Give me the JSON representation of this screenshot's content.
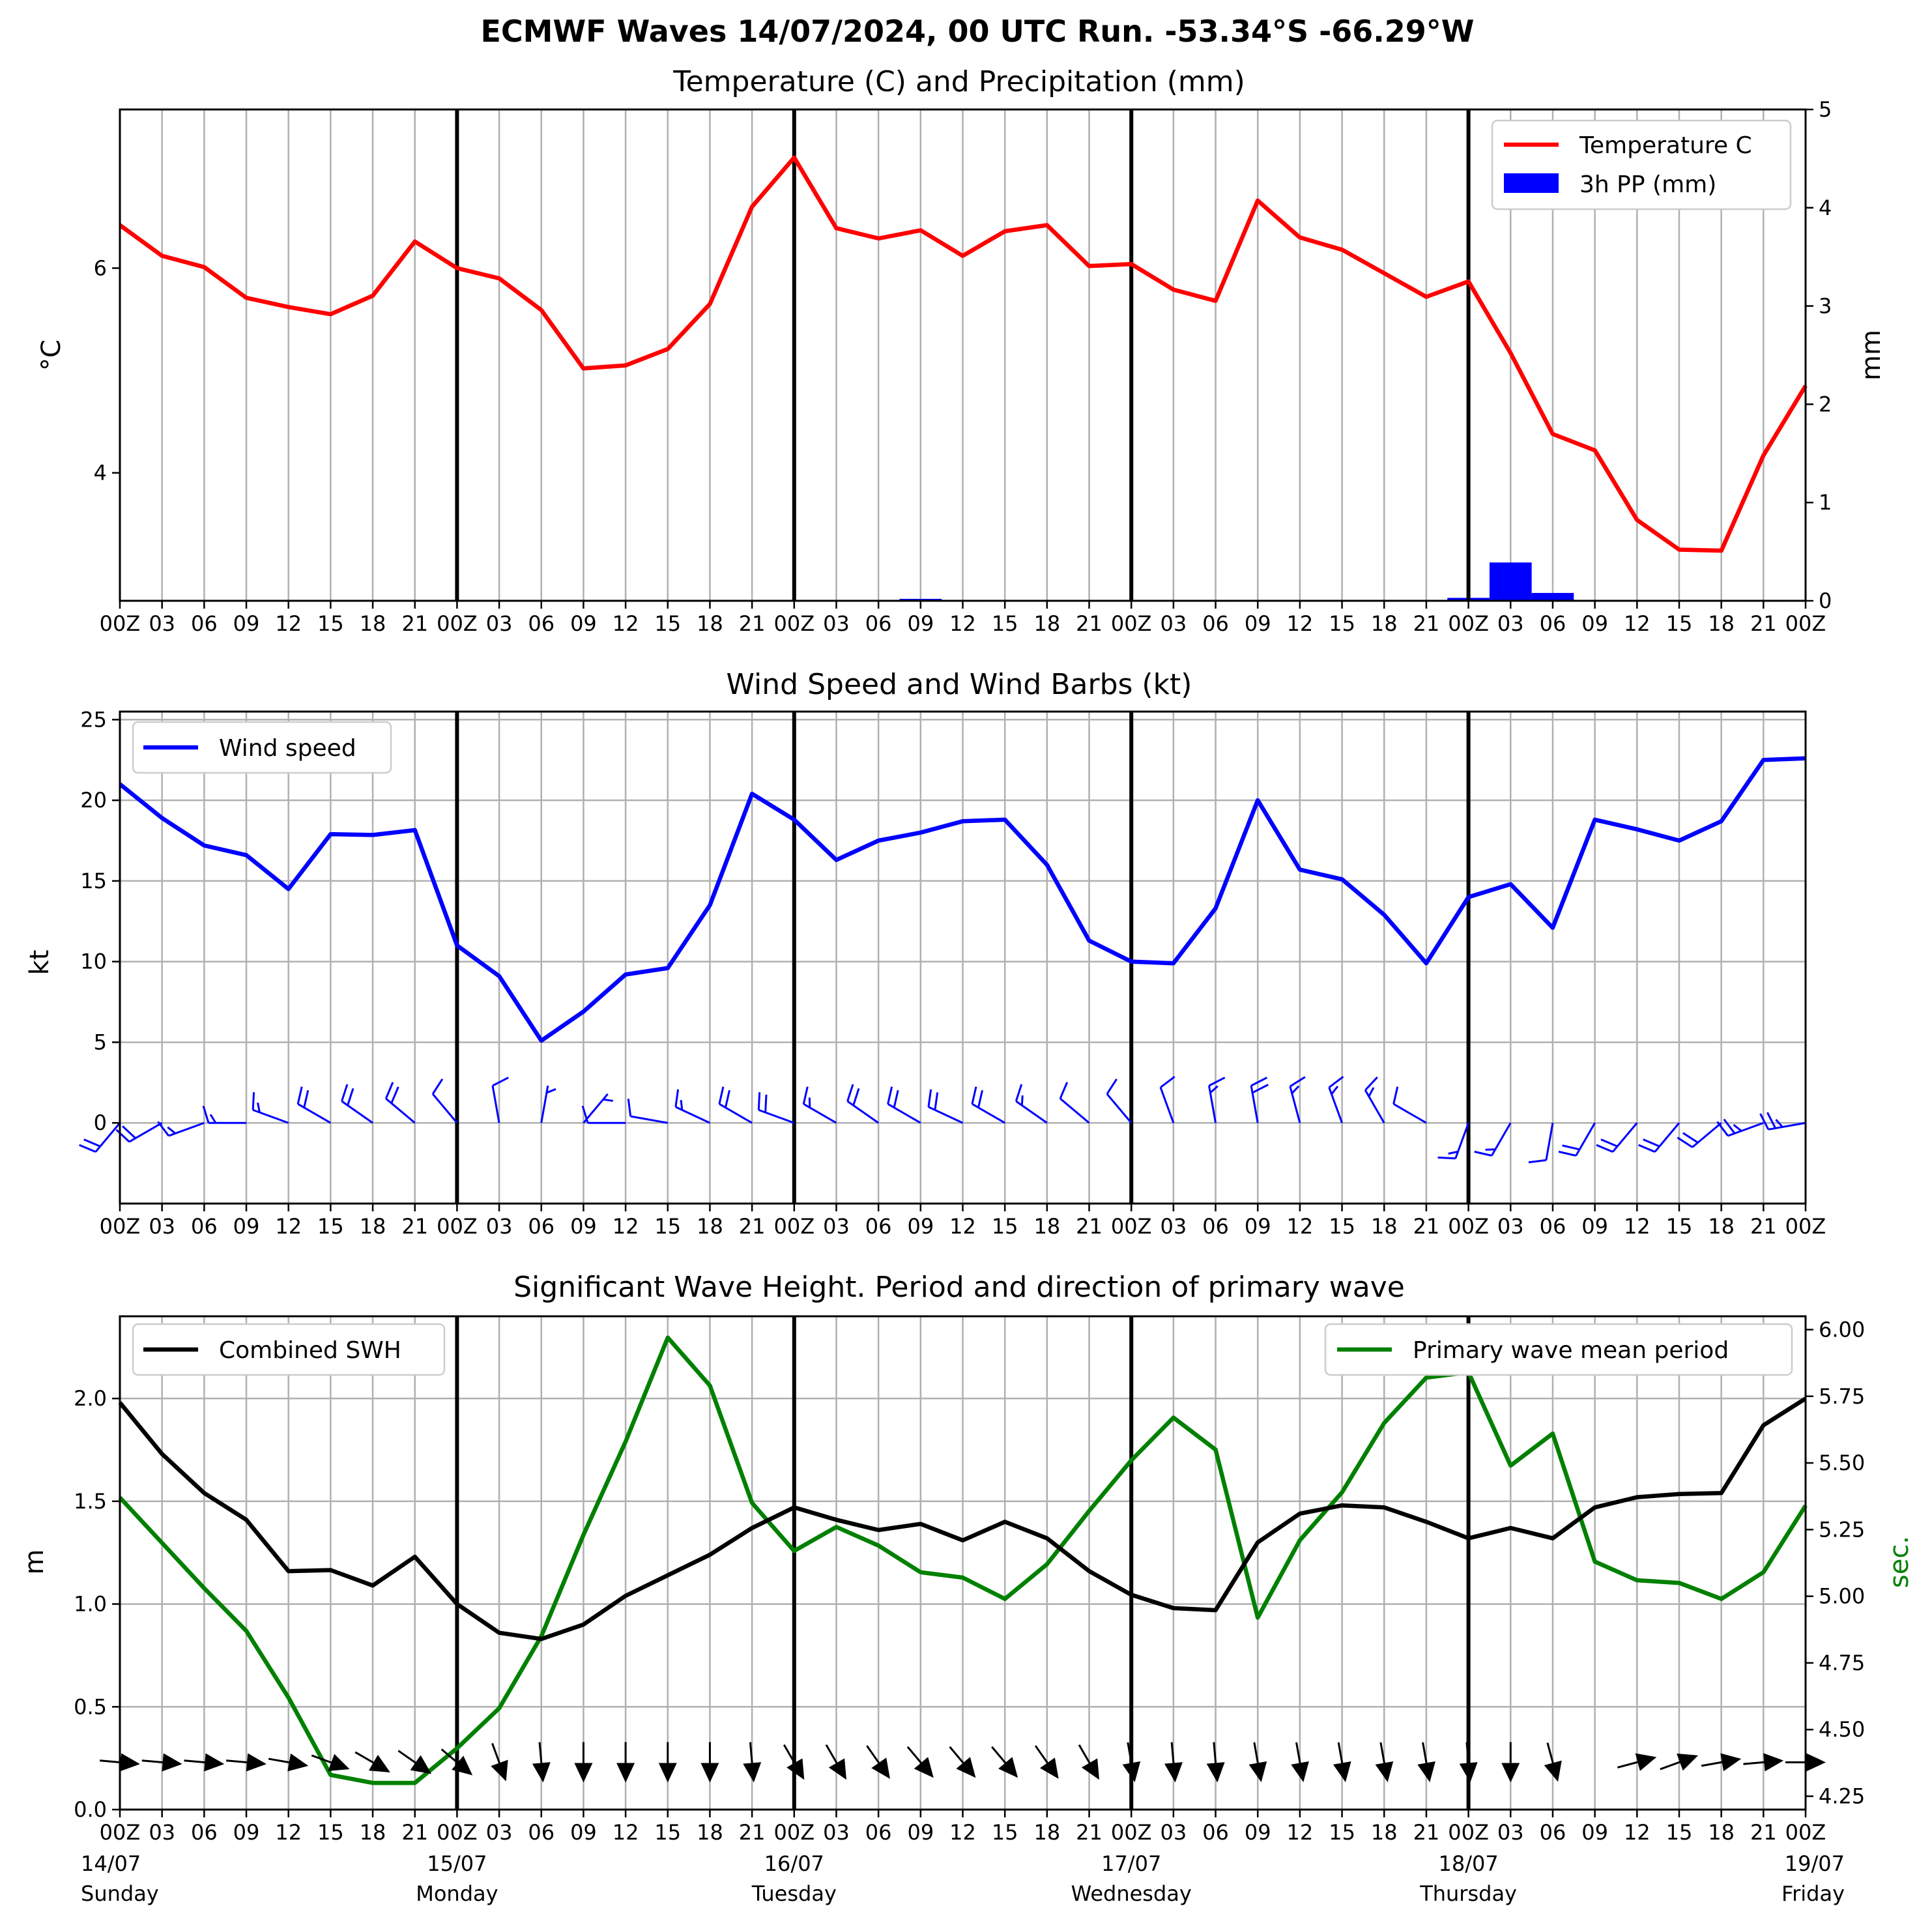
{
  "title": "ECMWF Waves 14/07/2024, 00 UTC Run. -53.34°S -66.29°W",
  "x_tick_labels_compact": [
    "00Z",
    "03",
    "06",
    "09",
    "12",
    "15",
    "18",
    "21",
    "00Z",
    "03",
    "06",
    "09",
    "12",
    "15",
    "18",
    "21",
    "00Z",
    "03",
    "06",
    "09",
    "12",
    "15",
    "18",
    "21",
    "00Z",
    "03",
    "06",
    "09",
    "12",
    "15",
    "18",
    "21",
    "00Z",
    "03",
    "06",
    "09",
    "12",
    "15",
    "18",
    "21",
    "00Z"
  ],
  "x_tick_labels_spaced": [
    "00Z",
    "03",
    "06",
    "09",
    "12",
    "15",
    "18",
    "21",
    "00Z",
    "03",
    "06",
    "09",
    "12",
    "15",
    "18",
    "21",
    "00Z",
    "03",
    "06",
    "09",
    "12",
    "15",
    "18",
    "21",
    "00Z",
    "03",
    "06",
    "09",
    "12",
    "15",
    "18",
    "21",
    "00Z",
    "03",
    "06",
    "09",
    "12",
    "15",
    "18",
    "21",
    "00Z"
  ],
  "day_labels": [
    {
      "date": "14/07",
      "day": "Sunday"
    },
    {
      "date": "15/07",
      "day": "Monday"
    },
    {
      "date": "16/07",
      "day": "Tuesday"
    },
    {
      "date": "17/07",
      "day": "Wednesday"
    },
    {
      "date": "18/07",
      "day": "Thursday"
    },
    {
      "date": "19/07",
      "day": "Friday"
    }
  ],
  "chart_data": [
    {
      "type": "line",
      "title": "Temperature (C) and Precipitation (mm)",
      "x_hours_from_run": [
        0,
        3,
        6,
        9,
        12,
        15,
        18,
        21,
        24,
        27,
        30,
        33,
        36,
        39,
        42,
        45,
        48,
        51,
        54,
        57,
        60,
        63,
        66,
        69,
        72,
        75,
        78,
        81,
        84,
        87,
        90,
        93,
        96,
        99,
        102,
        105,
        108,
        111,
        114,
        117,
        120
      ],
      "ylabel": "°C",
      "ylim": [
        2.75,
        7.55
      ],
      "yticks": [
        4,
        6
      ],
      "y2label": "mm",
      "y2lim": [
        0,
        5
      ],
      "y2ticks": [
        0,
        1,
        2,
        3,
        4,
        5
      ],
      "legend_position": "upper right",
      "series": [
        {
          "name": "Temperature C",
          "type": "line",
          "color": "#ff0000",
          "values": [
            6.42,
            6.12,
            6.01,
            5.71,
            5.62,
            5.55,
            5.73,
            6.26,
            6.0,
            5.9,
            5.59,
            5.02,
            5.05,
            5.21,
            5.65,
            6.6,
            7.08,
            6.39,
            6.29,
            6.37,
            6.12,
            6.36,
            6.42,
            6.02,
            6.04,
            5.79,
            5.68,
            6.66,
            6.3,
            6.18,
            5.95,
            5.72,
            5.87,
            5.17,
            4.38,
            4.22,
            3.54,
            3.25,
            3.24,
            4.17,
            4.85
          ]
        },
        {
          "name": "3h PP (mm)",
          "type": "bar",
          "color": "#0000ff",
          "axis": "right",
          "values": [
            0,
            0,
            0,
            0,
            0,
            0,
            0,
            0,
            0,
            0,
            0,
            0,
            0,
            0,
            0.01,
            0,
            0,
            0,
            0,
            0.02,
            0.01,
            0,
            0,
            0,
            0,
            0,
            0.01,
            0,
            0,
            0,
            0,
            0.01,
            0.03,
            0.39,
            0.08,
            0,
            0,
            0,
            0,
            0.01,
            0
          ]
        }
      ]
    },
    {
      "type": "line",
      "title": "Wind Speed and Wind Barbs (kt)",
      "x_hours_from_run": [
        0,
        3,
        6,
        9,
        12,
        15,
        18,
        21,
        24,
        27,
        30,
        33,
        36,
        39,
        42,
        45,
        48,
        51,
        54,
        57,
        60,
        63,
        66,
        69,
        72,
        75,
        78,
        81,
        84,
        87,
        90,
        93,
        96,
        99,
        102,
        105,
        108,
        111,
        114,
        117,
        120
      ],
      "ylabel": "kt",
      "ylim": [
        -5,
        25.5
      ],
      "yticks": [
        0,
        5,
        10,
        15,
        20,
        25
      ],
      "legend_position": "upper left",
      "series": [
        {
          "name": "Wind speed",
          "color": "#0000ff",
          "values": [
            21.0,
            18.9,
            17.2,
            16.6,
            14.5,
            17.9,
            17.85,
            18.15,
            11.0,
            9.1,
            5.1,
            6.9,
            9.2,
            9.6,
            13.5,
            20.4,
            18.8,
            16.3,
            17.5,
            18.0,
            18.7,
            18.8,
            16.0,
            11.3,
            10.0,
            9.9,
            13.3,
            20.0,
            15.7,
            15.1,
            12.9,
            9.9,
            14.0,
            14.8,
            12.1,
            18.8,
            18.2,
            17.5,
            18.7,
            22.5,
            22.6
          ]
        }
      ],
      "barbs": {
        "color": "#0000ff",
        "direction_deg_from": [
          220,
          240,
          250,
          270,
          290,
          300,
          305,
          310,
          320,
          350,
          10,
          40,
          270,
          280,
          295,
          300,
          290,
          300,
          305,
          300,
          295,
          300,
          305,
          310,
          320,
          340,
          350,
          350,
          345,
          340,
          330,
          300,
          200,
          210,
          190,
          210,
          220,
          220,
          230,
          250,
          260
        ]
      }
    },
    {
      "type": "line",
      "title": "Significant Wave Height. Period and direction of primary wave",
      "x_hours_from_run": [
        0,
        3,
        6,
        9,
        12,
        15,
        18,
        21,
        24,
        27,
        30,
        33,
        36,
        39,
        42,
        45,
        48,
        51,
        54,
        57,
        60,
        63,
        66,
        69,
        72,
        75,
        78,
        81,
        84,
        87,
        90,
        93,
        96,
        99,
        102,
        105,
        108,
        111,
        114,
        117,
        120
      ],
      "ylabel": "m",
      "ylim": [
        0,
        2.4
      ],
      "yticks": [
        0.0,
        0.5,
        1.0,
        1.5,
        2.0
      ],
      "y2label": "sec.",
      "y2lim": [
        4.2,
        6.05
      ],
      "y2ticks": [
        4.25,
        4.5,
        4.75,
        5.0,
        5.25,
        5.5,
        5.75,
        6.0
      ],
      "series": [
        {
          "name": "Combined SWH",
          "color": "#000000",
          "legend_position": "upper left",
          "values": [
            1.98,
            1.73,
            1.54,
            1.41,
            1.16,
            1.165,
            1.09,
            1.23,
            1.0,
            0.86,
            0.83,
            0.9,
            1.04,
            1.14,
            1.24,
            1.37,
            1.47,
            1.41,
            1.36,
            1.39,
            1.31,
            1.4,
            1.32,
            1.16,
            1.045,
            0.98,
            0.97,
            1.3,
            1.44,
            1.48,
            1.47,
            1.4,
            1.32,
            1.37,
            1.32,
            1.47,
            1.52,
            1.535,
            1.54,
            1.87,
            2.0
          ]
        },
        {
          "name": "Primary wave mean period",
          "color": "#008000",
          "axis": "right",
          "legend_position": "upper right",
          "values": [
            5.37,
            5.2,
            5.03,
            4.87,
            4.62,
            4.33,
            4.3,
            4.3,
            4.43,
            4.58,
            4.85,
            5.23,
            5.58,
            5.97,
            5.79,
            5.35,
            5.17,
            5.26,
            5.19,
            5.09,
            5.07,
            4.99,
            5.12,
            5.32,
            5.51,
            5.67,
            5.55,
            4.92,
            5.21,
            5.39,
            5.65,
            5.82,
            5.84,
            5.49,
            5.61,
            5.13,
            5.06,
            5.05,
            4.99,
            5.09,
            5.34
          ]
        }
      ],
      "wave_direction_arrows": {
        "color": "#000000",
        "direction_deg_toward": [
          95,
          95,
          95,
          95,
          100,
          110,
          120,
          125,
          130,
          160,
          175,
          180,
          180,
          180,
          180,
          175,
          150,
          150,
          145,
          140,
          140,
          140,
          145,
          150,
          170,
          175,
          175,
          170,
          170,
          170,
          170,
          170,
          175,
          180,
          165,
          null,
          75,
          70,
          80,
          85,
          90
        ]
      }
    }
  ]
}
